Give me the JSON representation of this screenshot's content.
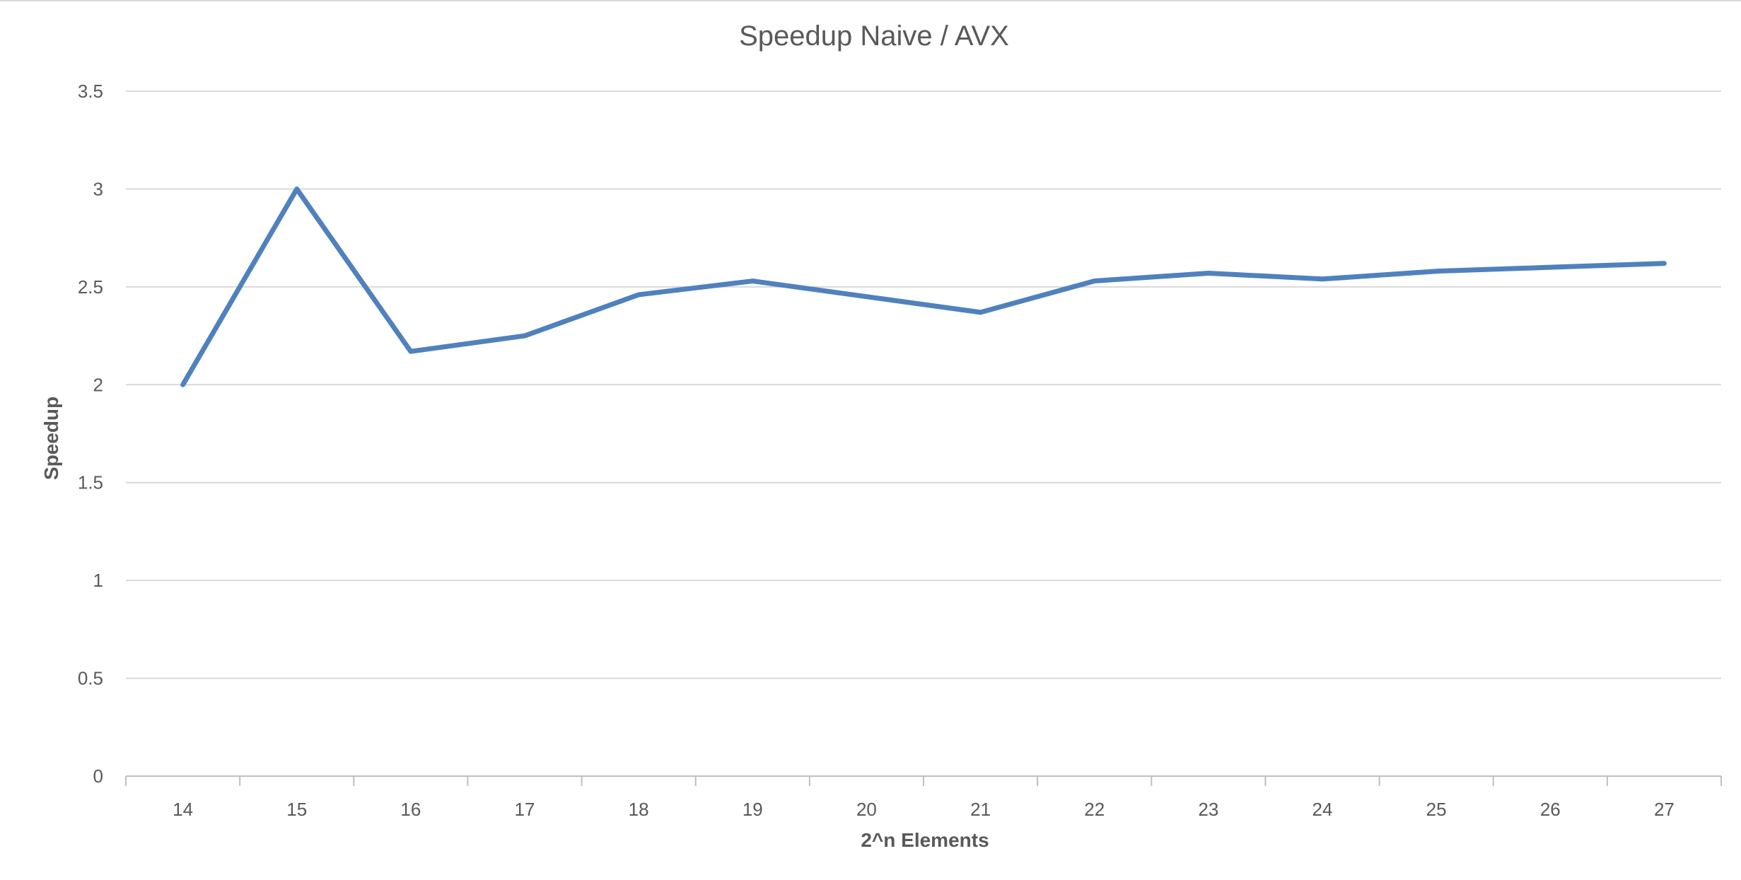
{
  "chart_data": {
    "type": "line",
    "title": "Speedup Naive / AVX",
    "xlabel": "2^n Elements",
    "ylabel": "Speedup",
    "categories": [
      "14",
      "15",
      "16",
      "17",
      "18",
      "19",
      "20",
      "21",
      "22",
      "23",
      "24",
      "25",
      "26",
      "27"
    ],
    "series": [
      {
        "values": [
          2.0,
          3.0,
          2.17,
          2.25,
          2.46,
          2.53,
          2.45,
          2.37,
          2.53,
          2.57,
          2.54,
          2.58,
          2.6,
          2.62
        ],
        "color": "#4f81bd"
      }
    ],
    "ylim": [
      0,
      3.5
    ],
    "yticks": [
      "0",
      "0.5",
      "1",
      "1.5",
      "2",
      "2.5",
      "3",
      "3.5"
    ],
    "grid": true,
    "legend": "none"
  }
}
